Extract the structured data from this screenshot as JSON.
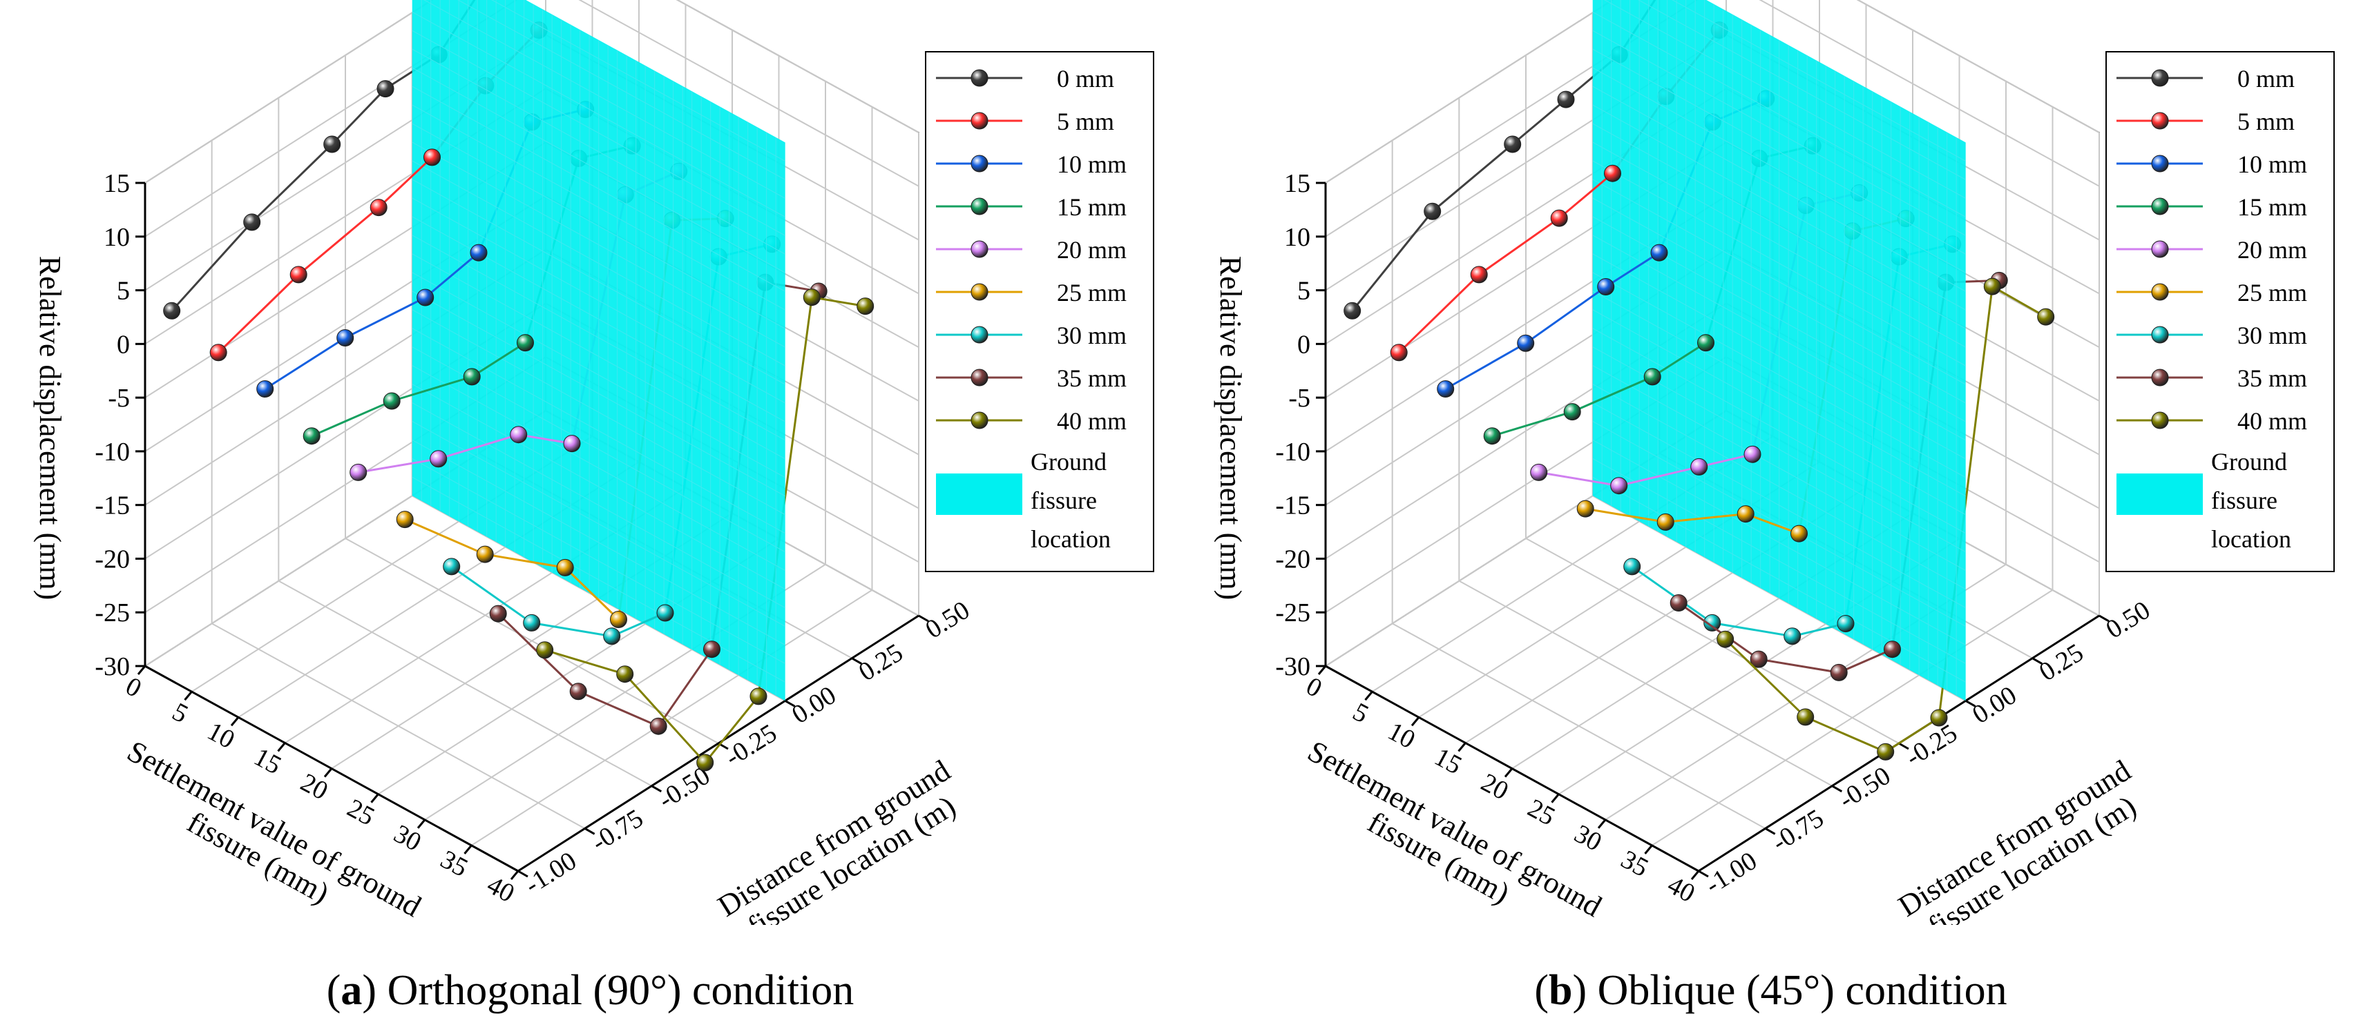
{
  "figure": {
    "panels": [
      {
        "caption_letter": "a",
        "caption_rest": " Orthogonal (90°) condition",
        "caption_open": "(",
        "caption_close": ")"
      },
      {
        "caption_letter": "b",
        "caption_rest": " Oblique (45°) condition",
        "caption_open": "(",
        "caption_close": ")"
      }
    ]
  },
  "chart_data": [
    {
      "type": "line3d",
      "title": "(a) Orthogonal (90°) condition",
      "xlabel": "Settlement value of ground fissure (mm)",
      "ylabel": "Distance from ground fissure location (m)",
      "zlabel": "Relative displacement (mm)",
      "xticks": [
        "0",
        "5",
        "10",
        "15",
        "20",
        "25",
        "30",
        "35",
        "40"
      ],
      "yticks": [
        "-1.00",
        "-0.75",
        "-0.50",
        "-0.25",
        "0.00",
        "0.25",
        "0.50"
      ],
      "zticks": [
        "-30",
        "-25",
        "-20",
        "-15",
        "-10",
        "-5",
        "0",
        "5",
        "10",
        "15"
      ],
      "xlim": [
        0,
        40
      ],
      "ylim": [
        -1.0,
        0.5
      ],
      "zlim": [
        -30,
        15
      ],
      "plane": {
        "label": "Ground fissure location",
        "y": 0.0,
        "color": "#00f0f0"
      },
      "legend_position": "right",
      "positions": [
        -0.9,
        -0.6,
        -0.3,
        -0.1,
        0.1,
        0.3
      ],
      "series": [
        {
          "name": "0 mm",
          "settlement": 0,
          "color": "#404040",
          "values": [
            1.5,
            5.0,
            7.5,
            9.5,
            9.5,
            14.0
          ]
        },
        {
          "name": "5 mm",
          "settlement": 5,
          "color": "#ff3030",
          "values": [
            0.0,
            2.5,
            4.0,
            5.5,
            9.0,
            11.0
          ]
        },
        {
          "name": "10 mm",
          "settlement": 10,
          "color": "#1560e0",
          "values": [
            -1.0,
            -1.0,
            -2.0,
            -1.0,
            8.0,
            6.0
          ]
        },
        {
          "name": "15 mm",
          "settlement": 15,
          "color": "#16a060",
          "values": [
            -3.0,
            -4.5,
            -7.0,
            -7.0,
            7.0,
            5.0
          ]
        },
        {
          "name": "20 mm",
          "settlement": 20,
          "color": "#d080f0",
          "values": [
            -4.0,
            -7.5,
            -10.0,
            -14.0,
            6.0,
            5.0
          ]
        },
        {
          "name": "25 mm",
          "settlement": 25,
          "color": "#e0a000",
          "values": [
            -6.0,
            -14.0,
            -20.0,
            -28.0,
            6.0,
            3.0
          ]
        },
        {
          "name": "30 mm",
          "settlement": 30,
          "color": "#10c8c8",
          "values": [
            -8.0,
            -18.0,
            -24.0,
            -25.0,
            5.0,
            3.0
          ]
        },
        {
          "name": "35 mm",
          "settlement": 35,
          "color": "#804040",
          "values": [
            -10.0,
            -22.0,
            -30.0,
            -26.0,
            5.0,
            1.0
          ]
        },
        {
          "name": "40 mm",
          "settlement": 40,
          "color": "#808000",
          "values": [
            -11.0,
            -18.0,
            -31.0,
            -28.0,
            6.0,
            2.0
          ]
        }
      ],
      "legend": {
        "items": [
          "0 mm",
          "5 mm",
          "10 mm",
          "15 mm",
          "20 mm",
          "25 mm",
          "30 mm",
          "35 mm",
          "40 mm"
        ],
        "plane_label_lines": [
          "Ground",
          "fissure",
          "location"
        ]
      }
    },
    {
      "type": "line3d",
      "title": "(b) Oblique (45°) condition",
      "xlabel": "Settlement value of ground fissure (mm)",
      "ylabel": "Distance from ground fissure location (m)",
      "zlabel": "Relative displacement (mm)",
      "xticks": [
        "0",
        "5",
        "10",
        "15",
        "20",
        "25",
        "30",
        "35",
        "40"
      ],
      "yticks": [
        "-1.00",
        "-0.75",
        "-0.50",
        "-0.25",
        "0.00",
        "0.25",
        "0.50"
      ],
      "zticks": [
        "-30",
        "-25",
        "-20",
        "-15",
        "-10",
        "-5",
        "0",
        "5",
        "10",
        "15"
      ],
      "xlim": [
        0,
        40
      ],
      "ylim": [
        -1.0,
        0.5
      ],
      "zlim": [
        -30,
        15
      ],
      "plane": {
        "label": "Ground fissure location",
        "y": 0.0,
        "color": "#00f0f0"
      },
      "legend_position": "right",
      "positions": [
        -0.9,
        -0.6,
        -0.3,
        -0.1,
        0.1,
        0.3
      ],
      "series": [
        {
          "name": "0 mm",
          "settlement": 0,
          "color": "#404040",
          "values": [
            1.5,
            6.0,
            7.5,
            8.5,
            9.5,
            14.0
          ]
        },
        {
          "name": "5 mm",
          "settlement": 5,
          "color": "#ff3030",
          "values": [
            0.0,
            2.5,
            3.0,
            4.0,
            8.0,
            11.0
          ]
        },
        {
          "name": "10 mm",
          "settlement": 10,
          "color": "#1560e0",
          "values": [
            -1.0,
            -1.5,
            -1.0,
            -1.0,
            8.0,
            7.0
          ]
        },
        {
          "name": "15 mm",
          "settlement": 15,
          "color": "#16a060",
          "values": [
            -3.0,
            -5.5,
            -7.0,
            -7.0,
            7.0,
            5.0
          ]
        },
        {
          "name": "20 mm",
          "settlement": 20,
          "color": "#d080f0",
          "values": [
            -4.0,
            -10.0,
            -13.0,
            -15.0,
            5.0,
            3.0
          ]
        },
        {
          "name": "25 mm",
          "settlement": 25,
          "color": "#e0a000",
          "values": [
            -5.0,
            -11.0,
            -15.0,
            -20.0,
            5.0,
            3.0
          ]
        },
        {
          "name": "30 mm",
          "settlement": 30,
          "color": "#10c8c8",
          "values": [
            -8.0,
            -18.0,
            -24.0,
            -26.0,
            5.0,
            3.0
          ]
        },
        {
          "name": "35 mm",
          "settlement": 35,
          "color": "#804040",
          "values": [
            -9.0,
            -19.0,
            -25.0,
            -26.0,
            5.0,
            2.0
          ]
        },
        {
          "name": "40 mm",
          "settlement": 40,
          "color": "#808000",
          "values": [
            -10.0,
            -22.0,
            -30.0,
            -30.0,
            7.0,
            1.0
          ]
        }
      ],
      "legend": {
        "items": [
          "0 mm",
          "5 mm",
          "10 mm",
          "15 mm",
          "20 mm",
          "25 mm",
          "30 mm",
          "35 mm",
          "40 mm"
        ],
        "plane_label_lines": [
          "Ground",
          "fissure",
          "location"
        ]
      }
    }
  ]
}
